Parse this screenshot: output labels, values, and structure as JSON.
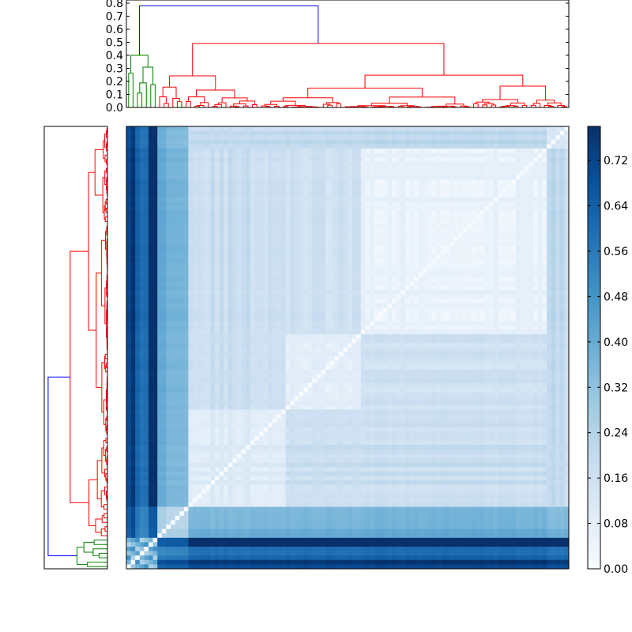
{
  "chart_data": [
    {
      "type": "dendrogram",
      "panel": "top",
      "yticks": [
        "0.0",
        "0.1",
        "0.2",
        "0.3",
        "0.4",
        "0.5",
        "0.6",
        "0.7",
        "0.8"
      ],
      "ylim": [
        0,
        0.8
      ],
      "leaf_count": 100,
      "link_colors": {
        "root": "#0000ff",
        "small_cluster": "#008000",
        "large_cluster": "#ff0000"
      },
      "clusters": [
        {
          "color": "#008000",
          "leaves": 7,
          "merge_height": 0.4
        },
        {
          "color": "#ff0000",
          "leaves": 93,
          "merge_height": 0.49
        }
      ],
      "root_height": 0.78
    },
    {
      "type": "dendrogram",
      "panel": "left",
      "leaf_count": 100,
      "link_colors": {
        "root": "#0000ff",
        "small_cluster": "#008000",
        "large_cluster": "#ff0000"
      },
      "clusters": [
        {
          "color": "#008000",
          "leaves": 7
        },
        {
          "color": "#ff0000",
          "leaves": 93
        }
      ]
    },
    {
      "type": "heatmap",
      "panel": "main",
      "colormap": "Blues",
      "n": 100,
      "diagonal_value": 0.0,
      "vmin": 0.0,
      "vmax": 0.78,
      "block_boundaries": [
        5,
        14,
        36,
        53,
        95
      ],
      "colorbar_ticks": [
        "0.00",
        "0.08",
        "0.16",
        "0.24",
        "0.32",
        "0.40",
        "0.48",
        "0.56",
        "0.64",
        "0.72"
      ]
    }
  ],
  "colors": {
    "low": "#f7fbff",
    "high": "#08306b"
  }
}
